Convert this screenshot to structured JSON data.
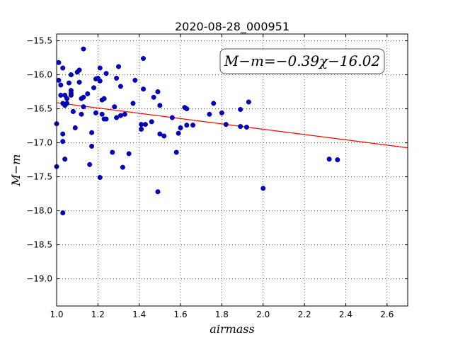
{
  "chart_data": {
    "type": "scatter",
    "title": "2020-08-28_000951",
    "xlabel": "airmass",
    "ylabel": "M−m",
    "xlim": [
      1.0,
      2.7
    ],
    "ylim": [
      -19.4,
      -15.4
    ],
    "y_inverted": true,
    "xticks": [
      1.0,
      1.2,
      1.4,
      1.6,
      1.8,
      2.0,
      2.2,
      2.4,
      2.6
    ],
    "xtick_labels": [
      "1.0",
      "1.2",
      "1.4",
      "1.6",
      "1.8",
      "2.0",
      "2.2",
      "2.4",
      "2.6"
    ],
    "yticks": [
      -15.5,
      -16.0,
      -16.5,
      -17.0,
      -17.5,
      -18.0,
      -18.5,
      -19.0
    ],
    "ytick_labels": [
      "−15.5",
      "−16.0",
      "−16.5",
      "−17.0",
      "−17.5",
      "−18.0",
      "−18.5",
      "−19.0"
    ],
    "grid": true,
    "annotation": "M−m=−0.39χ−16.02",
    "fit": {
      "slope": -0.39,
      "intercept": -16.02,
      "color": "#ff0000"
    },
    "marker_color": "#0000cc",
    "points": [
      [
        1.0,
        -16.72
      ],
      [
        1.0,
        -17.35
      ],
      [
        1.01,
        -15.82
      ],
      [
        1.01,
        -16.08
      ],
      [
        1.02,
        -16.3
      ],
      [
        1.02,
        -16.15
      ],
      [
        1.03,
        -15.9
      ],
      [
        1.03,
        -16.42
      ],
      [
        1.03,
        -16.87
      ],
      [
        1.03,
        -16.98
      ],
      [
        1.03,
        -18.03
      ],
      [
        1.04,
        -16.3
      ],
      [
        1.04,
        -16.45
      ],
      [
        1.04,
        -17.24
      ],
      [
        1.05,
        -16.35
      ],
      [
        1.05,
        -16.42
      ],
      [
        1.06,
        -16.12
      ],
      [
        1.07,
        -16.23
      ],
      [
        1.07,
        -16.27
      ],
      [
        1.07,
        -16.3
      ],
      [
        1.07,
        -16.0
      ],
      [
        1.08,
        -16.54
      ],
      [
        1.09,
        -16.78
      ],
      [
        1.1,
        -15.96
      ],
      [
        1.11,
        -15.93
      ],
      [
        1.11,
        -16.11
      ],
      [
        1.12,
        -16.35
      ],
      [
        1.12,
        -16.58
      ],
      [
        1.13,
        -15.62
      ],
      [
        1.13,
        -16.33
      ],
      [
        1.13,
        -16.47
      ],
      [
        1.15,
        -16.28
      ],
      [
        1.16,
        -17.32
      ],
      [
        1.17,
        -16.85
      ],
      [
        1.17,
        -17.05
      ],
      [
        1.18,
        -16.19
      ],
      [
        1.19,
        -16.06
      ],
      [
        1.19,
        -16.56
      ],
      [
        1.2,
        -16.05
      ],
      [
        1.21,
        -17.51
      ],
      [
        1.21,
        -16.09
      ],
      [
        1.21,
        -15.9
      ],
      [
        1.22,
        -16.37
      ],
      [
        1.22,
        -16.58
      ],
      [
        1.23,
        -16.65
      ],
      [
        1.23,
        -16.35
      ],
      [
        1.24,
        -16.65
      ],
      [
        1.24,
        -15.98
      ],
      [
        1.27,
        -17.14
      ],
      [
        1.28,
        -16.47
      ],
      [
        1.29,
        -16.63
      ],
      [
        1.29,
        -16.05
      ],
      [
        1.3,
        -15.88
      ],
      [
        1.31,
        -16.6
      ],
      [
        1.31,
        -16.17
      ],
      [
        1.32,
        -17.36
      ],
      [
        1.33,
        -16.58
      ],
      [
        1.35,
        -17.16
      ],
      [
        1.37,
        -16.42
      ],
      [
        1.38,
        -16.08
      ],
      [
        1.41,
        -16.73
      ],
      [
        1.41,
        -16.8
      ],
      [
        1.42,
        -15.76
      ],
      [
        1.42,
        -16.21
      ],
      [
        1.43,
        -16.73
      ],
      [
        1.46,
        -16.69
      ],
      [
        1.47,
        -16.33
      ],
      [
        1.49,
        -17.72
      ],
      [
        1.49,
        -16.25
      ],
      [
        1.5,
        -16.87
      ],
      [
        1.5,
        -16.45
      ],
      [
        1.52,
        -16.9
      ],
      [
        1.56,
        -16.63
      ],
      [
        1.58,
        -17.14
      ],
      [
        1.59,
        -16.86
      ],
      [
        1.6,
        -16.78
      ],
      [
        1.62,
        -16.48
      ],
      [
        1.63,
        -16.5
      ],
      [
        1.63,
        -16.74
      ],
      [
        1.66,
        -16.74
      ],
      [
        1.74,
        -16.58
      ],
      [
        1.76,
        -16.42
      ],
      [
        1.8,
        -16.56
      ],
      [
        1.82,
        -16.73
      ],
      [
        1.89,
        -16.51
      ],
      [
        1.89,
        -16.76
      ],
      [
        1.92,
        -16.77
      ],
      [
        1.93,
        -16.4
      ],
      [
        2.0,
        -17.67
      ],
      [
        2.32,
        -17.24
      ],
      [
        2.36,
        -17.25
      ]
    ]
  }
}
